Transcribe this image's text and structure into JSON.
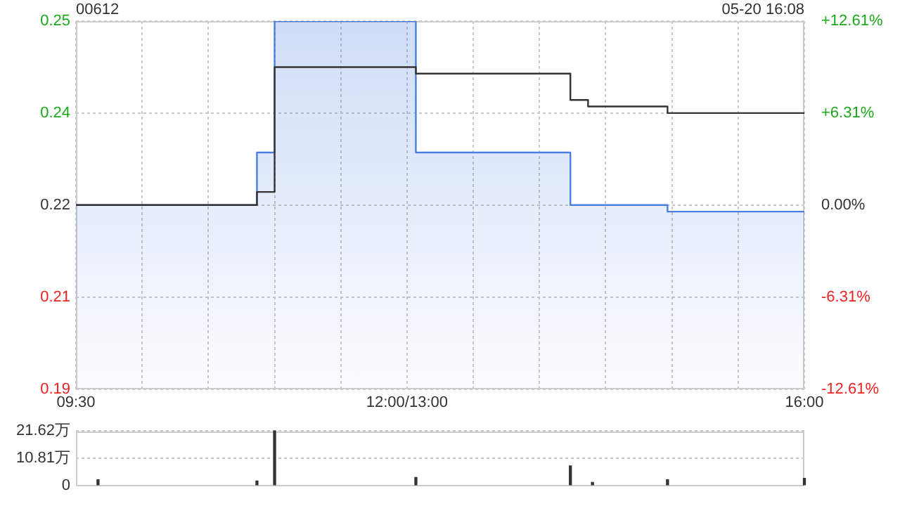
{
  "chart_data": [
    {
      "type": "step",
      "title": "00612",
      "subtitle": "05-20 16:08",
      "categories": [
        "09:30",
        null,
        null,
        null,
        null,
        null,
        null,
        null,
        null,
        null,
        null,
        null,
        null,
        null,
        null,
        null,
        null,
        null,
        null,
        null,
        null,
        null,
        null,
        null,
        null,
        null,
        null,
        null,
        null,
        null,
        null,
        null,
        null,
        null,
        null,
        null,
        null,
        null,
        null,
        null,
        null,
        null,
        null,
        null,
        null,
        null,
        null,
        null,
        null,
        null,
        null,
        null,
        null,
        null,
        null,
        null,
        null,
        null,
        null,
        null,
        null,
        null,
        null,
        null,
        null,
        null,
        null,
        null,
        null,
        null,
        null,
        null,
        null,
        null,
        null,
        "12:00/13:00",
        null,
        null,
        null,
        null,
        null,
        null,
        null,
        null,
        null,
        null,
        null,
        null,
        null,
        null,
        null,
        null,
        null,
        null,
        null,
        null,
        null,
        null,
        null,
        null,
        null,
        null,
        null,
        null,
        null,
        null,
        null,
        null,
        null,
        null,
        null,
        null,
        null,
        null,
        null,
        null,
        null,
        null,
        null,
        null,
        null,
        null,
        null,
        null,
        null,
        null,
        null,
        null,
        null,
        null,
        null,
        null,
        null,
        null,
        null,
        null,
        null,
        null,
        null,
        null,
        null,
        null,
        null,
        null,
        null,
        null,
        null,
        null,
        null,
        null,
        null,
        null,
        null,
        null,
        null,
        null,
        null,
        null,
        null,
        null,
        null,
        null,
        null,
        null,
        null,
        "16:00"
      ],
      "ylim": [
        0.194,
        0.25
      ],
      "yticks": [
        {
          "value": 0.25,
          "label": "0.25"
        },
        {
          "value": 0.236,
          "label": "0.24"
        },
        {
          "value": 0.222,
          "label": "0.22"
        },
        {
          "value": 0.208,
          "label": "0.21"
        },
        {
          "value": 0.194,
          "label": "0.19"
        }
      ],
      "y2lim": [
        -12.61,
        12.61
      ],
      "y2ticks": [
        {
          "value": 12.61,
          "label": "+12.61%"
        },
        {
          "value": 6.31,
          "label": "+6.31%"
        },
        {
          "value": 0,
          "label": "0.00%"
        },
        {
          "value": -6.31,
          "label": "-6.31%"
        },
        {
          "value": -12.61,
          "label": "-12.61%"
        }
      ],
      "grid": true,
      "legend": false,
      "line_style": "solid",
      "marker": "none",
      "series": [
        {
          "type": "area",
          "color": "#4a7fe0",
          "values": [
            0.222,
            0.222,
            0.222,
            0.222,
            0.222,
            0.222,
            0.222,
            0.222,
            0.222,
            0.222,
            0.222,
            0.222,
            0.222,
            0.222,
            0.222,
            0.222,
            0.222,
            0.222,
            0.222,
            0.222,
            0.222,
            0.222,
            0.222,
            0.222,
            0.222,
            0.222,
            0.222,
            0.222,
            0.222,
            0.222,
            0.222,
            0.222,
            0.222,
            0.222,
            0.222,
            0.222,
            0.222,
            0.222,
            0.222,
            0.222,
            0.222,
            0.23,
            0.23,
            0.23,
            0.23,
            0.25,
            0.25,
            0.25,
            0.25,
            0.25,
            0.25,
            0.25,
            0.25,
            0.25,
            0.25,
            0.25,
            0.25,
            0.25,
            0.25,
            0.25,
            0.25,
            0.25,
            0.25,
            0.25,
            0.25,
            0.25,
            0.25,
            0.25,
            0.25,
            0.25,
            0.25,
            0.25,
            0.25,
            0.25,
            0.25,
            0.25,
            0.25,
            0.23,
            0.23,
            0.23,
            0.23,
            0.23,
            0.23,
            0.23,
            0.23,
            0.23,
            0.23,
            0.23,
            0.23,
            0.23,
            0.23,
            0.23,
            0.23,
            0.23,
            0.23,
            0.23,
            0.23,
            0.23,
            0.23,
            0.23,
            0.23,
            0.23,
            0.23,
            0.23,
            0.23,
            0.23,
            0.23,
            0.23,
            0.23,
            0.23,
            0.23,
            0.23,
            0.222,
            0.222,
            0.222,
            0.222,
            0.222,
            0.222,
            0.222,
            0.222,
            0.222,
            0.222,
            0.222,
            0.222,
            0.222,
            0.222,
            0.222,
            0.222,
            0.222,
            0.222,
            0.222,
            0.222,
            0.222,
            0.222,
            0.221,
            0.221,
            0.221,
            0.221,
            0.221,
            0.221,
            0.221,
            0.221,
            0.221,
            0.221,
            0.221,
            0.221,
            0.221,
            0.221,
            0.221,
            0.221,
            0.221,
            0.221,
            0.221,
            0.221,
            0.221,
            0.221,
            0.221,
            0.221,
            0.221,
            0.221,
            0.221,
            0.221,
            0.221,
            0.221,
            0.221,
            0.221
          ]
        },
        {
          "type": "step",
          "color": "#333333",
          "values": [
            0.222,
            0.222,
            0.222,
            0.222,
            0.222,
            0.222,
            0.222,
            0.222,
            0.222,
            0.222,
            0.222,
            0.222,
            0.222,
            0.222,
            0.222,
            0.222,
            0.222,
            0.222,
            0.222,
            0.222,
            0.222,
            0.222,
            0.222,
            0.222,
            0.222,
            0.222,
            0.222,
            0.222,
            0.222,
            0.222,
            0.222,
            0.222,
            0.222,
            0.222,
            0.222,
            0.222,
            0.222,
            0.222,
            0.222,
            0.222,
            0.222,
            0.224,
            0.224,
            0.224,
            0.224,
            0.243,
            0.243,
            0.243,
            0.243,
            0.243,
            0.243,
            0.243,
            0.243,
            0.243,
            0.243,
            0.243,
            0.243,
            0.243,
            0.243,
            0.243,
            0.243,
            0.243,
            0.243,
            0.243,
            0.243,
            0.243,
            0.243,
            0.243,
            0.243,
            0.243,
            0.243,
            0.243,
            0.243,
            0.243,
            0.243,
            0.243,
            0.243,
            0.242,
            0.242,
            0.242,
            0.242,
            0.242,
            0.242,
            0.242,
            0.242,
            0.242,
            0.242,
            0.242,
            0.242,
            0.242,
            0.242,
            0.242,
            0.242,
            0.242,
            0.242,
            0.242,
            0.242,
            0.242,
            0.242,
            0.242,
            0.242,
            0.242,
            0.242,
            0.242,
            0.242,
            0.242,
            0.242,
            0.242,
            0.242,
            0.242,
            0.242,
            0.242,
            0.238,
            0.238,
            0.238,
            0.238,
            0.237,
            0.237,
            0.237,
            0.237,
            0.237,
            0.237,
            0.237,
            0.237,
            0.237,
            0.237,
            0.237,
            0.237,
            0.237,
            0.237,
            0.237,
            0.237,
            0.237,
            0.237,
            0.236,
            0.236,
            0.236,
            0.236,
            0.236,
            0.236,
            0.236,
            0.236,
            0.236,
            0.236,
            0.236,
            0.236,
            0.236,
            0.236,
            0.236,
            0.236,
            0.236,
            0.236,
            0.236,
            0.236,
            0.236,
            0.236,
            0.236,
            0.236,
            0.236,
            0.236,
            0.236,
            0.236,
            0.236,
            0.236,
            0.236,
            0.236
          ]
        }
      ]
    },
    {
      "type": "bar",
      "categories": [
        null,
        null,
        null,
        null,
        null,
        null,
        null,
        null,
        null,
        null,
        null,
        null,
        null,
        null,
        null,
        null,
        null,
        null,
        null,
        null,
        null,
        null,
        null,
        null,
        null,
        null,
        null,
        null,
        null,
        null,
        null,
        null,
        null,
        null,
        null,
        null,
        null,
        null,
        null,
        null,
        null,
        null,
        null,
        null,
        null,
        null,
        null,
        null,
        null,
        null,
        null,
        null,
        null,
        null,
        null,
        null,
        null,
        null,
        null,
        null,
        null,
        null,
        null,
        null,
        null,
        null,
        null,
        null,
        null,
        null,
        null,
        null,
        null,
        null,
        null,
        null,
        null,
        null,
        null,
        null,
        null,
        null,
        null,
        null,
        null,
        null,
        null,
        null,
        null,
        null,
        null,
        null,
        null,
        null,
        null,
        null,
        null,
        null,
        null,
        null,
        null,
        null,
        null,
        null,
        null,
        null,
        null,
        null,
        null,
        null,
        null,
        null,
        null,
        null,
        null,
        null,
        null,
        null,
        null,
        null,
        null,
        null,
        null,
        null,
        null,
        null,
        null,
        null,
        null,
        null,
        null,
        null,
        null,
        null,
        null,
        null,
        null,
        null,
        null,
        null,
        null,
        null,
        null,
        null,
        null,
        null,
        null,
        null,
        null,
        null,
        null,
        null,
        null,
        null,
        null,
        null,
        null,
        null,
        null,
        null,
        null,
        null,
        null,
        null,
        null,
        null
      ],
      "values": [
        null,
        null,
        null,
        null,
        null,
        2.3,
        null,
        null,
        null,
        null,
        null,
        null,
        null,
        null,
        null,
        null,
        null,
        null,
        null,
        null,
        null,
        null,
        null,
        null,
        null,
        null,
        null,
        null,
        null,
        null,
        null,
        null,
        null,
        null,
        null,
        null,
        null,
        null,
        null,
        null,
        null,
        1.8,
        null,
        null,
        null,
        21.6,
        null,
        null,
        null,
        null,
        null,
        null,
        null,
        null,
        null,
        null,
        null,
        null,
        null,
        null,
        null,
        null,
        null,
        null,
        null,
        null,
        null,
        null,
        null,
        null,
        null,
        null,
        null,
        null,
        null,
        null,
        null,
        3.2,
        null,
        null,
        null,
        null,
        null,
        null,
        null,
        null,
        null,
        null,
        null,
        null,
        null,
        null,
        null,
        null,
        null,
        null,
        null,
        null,
        null,
        null,
        null,
        null,
        null,
        null,
        null,
        null,
        null,
        null,
        null,
        null,
        null,
        null,
        7.8,
        null,
        null,
        null,
        null,
        1.2,
        null,
        null,
        null,
        null,
        null,
        null,
        null,
        null,
        null,
        null,
        null,
        null,
        null,
        null,
        null,
        null,
        2.3,
        null,
        null,
        null,
        null,
        null,
        null,
        null,
        null,
        null,
        null,
        null,
        null,
        null,
        null,
        null,
        null,
        null,
        null,
        null,
        null,
        null,
        null,
        null,
        null,
        null,
        null,
        null,
        null,
        null,
        null,
        2.8
      ],
      "color": "#333333",
      "ylim": [
        0,
        21.62
      ],
      "yticks": [
        {
          "value": 0,
          "label": "0"
        },
        {
          "value": 10.81,
          "label": "10.81万"
        },
        {
          "value": 21.62,
          "label": "21.62万"
        }
      ],
      "tick_labels": "y",
      "grid": "y",
      "legend": false
    }
  ]
}
